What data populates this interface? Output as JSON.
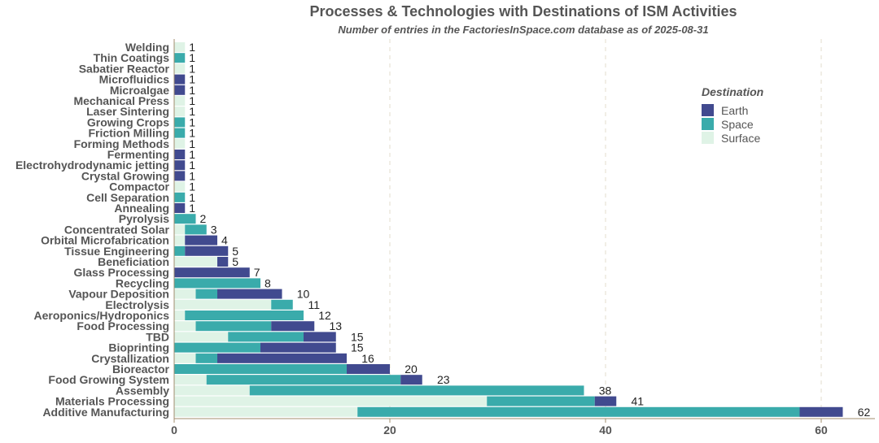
{
  "chart_data": {
    "type": "bar",
    "orientation": "horizontal",
    "stacked": true,
    "title": "Processes & Technologies with Destinations of ISM Activities",
    "subtitle": "Number of entries in the FactoriesInSpace.com database as of 2025-08-31",
    "xlabel": "",
    "ylabel": "",
    "xlim": [
      0,
      65
    ],
    "xticks": [
      0,
      20,
      40,
      60
    ],
    "grid": "vertical dashed",
    "legend": {
      "title": "Destination",
      "position": "right",
      "entries": [
        "Earth",
        "Space",
        "Surface"
      ]
    },
    "colors": {
      "Earth": "#414a8f",
      "Space": "#3aabab",
      "Surface": "#dff3e6"
    },
    "categories": [
      "Welding",
      "Thin Coatings",
      "Sabatier Reactor",
      "Microfluidics",
      "Microalgae",
      "Mechanical Press",
      "Laser Sintering",
      "Growing Crops",
      "Friction Milling",
      "Forming Methods",
      "Fermenting",
      "Electrohydrodynamic jetting",
      "Crystal Growing",
      "Compactor",
      "Cell Separation",
      "Annealing",
      "Pyrolysis",
      "Concentrated Solar",
      "Orbital Microfabrication",
      "Tissue Engineering",
      "Beneficiation",
      "Glass Processing",
      "Recycling",
      "Vapour Deposition",
      "Electrolysis",
      "Aeroponics/Hydroponics",
      "Food Processing",
      "TBD",
      "Bioprinting",
      "Crystallization",
      "Bioreactor",
      "Food Growing System",
      "Assembly",
      "Materials Processing",
      "Additive Manufacturing"
    ],
    "series": [
      {
        "name": "Surface",
        "values": [
          1,
          0,
          1,
          0,
          0,
          1,
          1,
          0,
          0,
          1,
          0,
          0,
          0,
          1,
          0,
          0,
          0,
          1,
          1,
          0,
          4,
          0,
          0,
          2,
          9,
          1,
          2,
          5,
          0,
          2,
          0,
          3,
          7,
          29,
          17
        ]
      },
      {
        "name": "Space",
        "values": [
          0,
          1,
          0,
          0,
          0,
          0,
          0,
          1,
          1,
          0,
          0,
          0,
          0,
          0,
          1,
          0,
          2,
          2,
          0,
          1,
          0,
          0,
          8,
          2,
          2,
          11,
          7,
          7,
          8,
          2,
          16,
          18,
          31,
          10,
          41
        ]
      },
      {
        "name": "Earth",
        "values": [
          0,
          0,
          0,
          1,
          1,
          0,
          0,
          0,
          0,
          0,
          1,
          1,
          1,
          0,
          0,
          1,
          0,
          0,
          3,
          4,
          1,
          7,
          0,
          6,
          0,
          0,
          4,
          3,
          7,
          12,
          4,
          2,
          0,
          2,
          4
        ]
      }
    ],
    "totals": [
      1,
      1,
      1,
      1,
      1,
      1,
      1,
      1,
      1,
      1,
      1,
      1,
      1,
      1,
      1,
      1,
      2,
      3,
      4,
      5,
      5,
      7,
      8,
      10,
      11,
      12,
      13,
      15,
      15,
      16,
      20,
      23,
      38,
      41,
      62
    ]
  }
}
